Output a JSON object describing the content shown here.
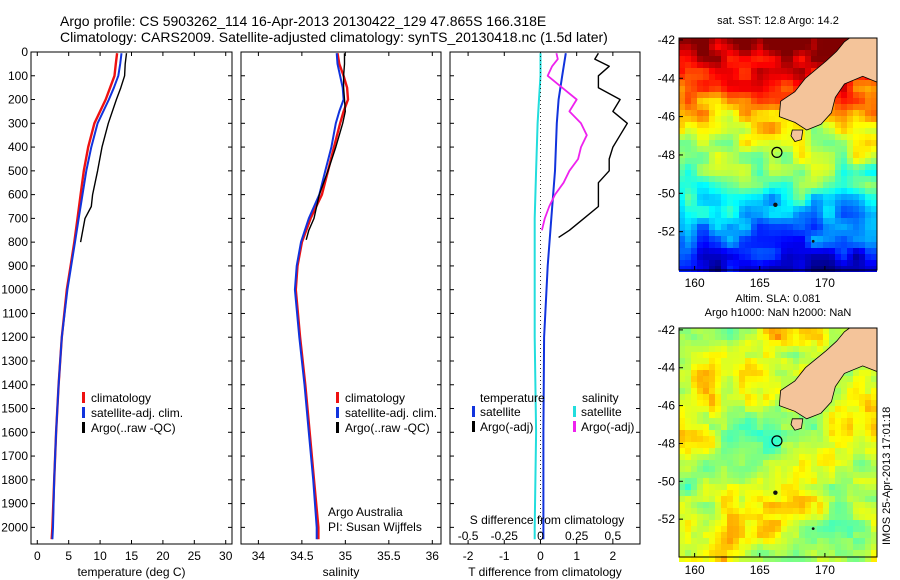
{
  "header": {
    "line1": "Argo profile: CS 5903262_114 16-Apr-2013 20130422_129 47.865S 166.318E",
    "line2": "Climatology: CARS2009. Satellite-adjusted climatology: synTS_20130418.nc (1.5d later)"
  },
  "colors": {
    "climatology": "#ee1111",
    "satellite": "#1133dd",
    "argo": "#000000",
    "sal_satellite": "#22dddd",
    "sal_argo": "#ee22ee",
    "land": "#f4c49a"
  },
  "chart_data": [
    {
      "type": "line",
      "xlabel": "temperature (deg C)",
      "ylabel": "",
      "xlim": [
        -1,
        31
      ],
      "ylim": [
        2070,
        0
      ],
      "xticks": [
        0,
        5,
        10,
        15,
        20,
        25,
        30
      ],
      "yticks": [
        0,
        100,
        200,
        300,
        400,
        500,
        600,
        700,
        800,
        900,
        1000,
        1100,
        1200,
        1300,
        1400,
        1500,
        1600,
        1700,
        1800,
        1900,
        2000
      ],
      "legend": [
        "climatology",
        "satellite-adj. clim.",
        "Argo(..raw -QC)"
      ],
      "series": [
        {
          "name": "climatology",
          "depth": [
            5,
            50,
            100,
            150,
            200,
            300,
            400,
            500,
            600,
            700,
            800,
            900,
            1000,
            1200,
            1400,
            1600,
            1800,
            2000,
            2050
          ],
          "values": [
            12.7,
            12.5,
            12.3,
            11.6,
            10.9,
            9.1,
            8.1,
            7.4,
            6.9,
            6.4,
            5.9,
            5.3,
            4.7,
            3.9,
            3.4,
            3.0,
            2.7,
            2.4,
            2.3
          ]
        },
        {
          "name": "satellite-adj. clim.",
          "depth": [
            5,
            50,
            100,
            150,
            200,
            300,
            400,
            500,
            600,
            700,
            800,
            900,
            1000,
            1200,
            1400,
            1600,
            1800,
            2000,
            2050
          ],
          "values": [
            13.4,
            13.2,
            12.9,
            12.2,
            11.4,
            9.6,
            8.6,
            7.8,
            7.2,
            6.6,
            6.0,
            5.4,
            4.8,
            3.9,
            3.4,
            3.0,
            2.7,
            2.5,
            2.4
          ]
        },
        {
          "name": "Argo(..raw -QC)",
          "depth": [
            5,
            50,
            100,
            150,
            200,
            300,
            400,
            500,
            600,
            650,
            700,
            800
          ],
          "values": [
            14.2,
            14.0,
            13.9,
            13.3,
            12.6,
            11.3,
            10.3,
            9.6,
            8.8,
            8.6,
            7.6,
            6.9
          ]
        }
      ]
    },
    {
      "type": "line",
      "xlabel": "salinity",
      "ylabel": "",
      "xlim": [
        33.8,
        36.1
      ],
      "ylim": [
        2070,
        0
      ],
      "xticks": [
        34,
        34.5,
        35,
        35.5,
        36
      ],
      "legend": [
        "climatology",
        "satellite-adj. clim.",
        "Argo(..raw -QC)"
      ],
      "annotation": [
        "Argo Australia",
        "PI: Susan Wijffels"
      ],
      "series": [
        {
          "name": "climatology",
          "depth": [
            5,
            50,
            100,
            150,
            200,
            250,
            300,
            400,
            500,
            600,
            700,
            800,
            900,
            1000,
            1200,
            1400,
            1600,
            1800,
            2000,
            2050
          ],
          "values": [
            34.91,
            34.93,
            34.98,
            35.02,
            35.03,
            34.98,
            34.94,
            34.87,
            34.8,
            34.73,
            34.6,
            34.5,
            34.45,
            34.43,
            34.48,
            34.54,
            34.59,
            34.64,
            34.69,
            34.69
          ]
        },
        {
          "name": "satellite-adj. clim.",
          "depth": [
            5,
            50,
            100,
            150,
            200,
            250,
            300,
            400,
            500,
            600,
            700,
            800,
            900,
            1000,
            1200,
            1400,
            1600,
            1800,
            2000,
            2050
          ],
          "values": [
            34.9,
            34.91,
            34.94,
            34.97,
            34.98,
            34.93,
            34.89,
            34.84,
            34.77,
            34.7,
            34.58,
            34.49,
            34.44,
            34.42,
            34.47,
            34.53,
            34.58,
            34.63,
            34.67,
            34.67
          ]
        },
        {
          "name": "Argo(..raw -QC)",
          "depth": [
            5,
            50,
            100,
            150,
            200,
            250,
            300,
            400,
            500,
            600,
            700,
            750,
            790
          ],
          "values": [
            34.99,
            34.99,
            34.98,
            34.98,
            34.99,
            35.0,
            34.97,
            34.89,
            34.8,
            34.7,
            34.64,
            34.58,
            34.55
          ]
        }
      ]
    },
    {
      "type": "line",
      "xlabel": "T difference from climatology",
      "ylabel": "",
      "title_top": "S difference from climatology",
      "xlim": [
        -2.5,
        2.75
      ],
      "ylim": [
        2070,
        0
      ],
      "xticks": [
        -2,
        -1,
        0,
        1,
        2
      ],
      "xticks_top": [
        -0.5,
        -0.25,
        0,
        0.25,
        0.5
      ],
      "legend_left": {
        "heading": "temperature",
        "entries": [
          "satellite",
          "Argo(-adj)"
        ]
      },
      "legend_right": {
        "heading": "salinity",
        "entries": [
          "satellite",
          "Argo(-adj)"
        ]
      },
      "series": [
        {
          "name": "temperature satellite",
          "depth": [
            5,
            100,
            200,
            300,
            500,
            700,
            900,
            1200,
            1600,
            2000,
            2050
          ],
          "values": [
            0.7,
            0.6,
            0.5,
            0.45,
            0.4,
            0.3,
            0.2,
            0.1,
            0.08,
            0.08,
            0.08
          ]
        },
        {
          "name": "temperature Argo(-adj)",
          "depth": [
            5,
            30,
            60,
            100,
            150,
            200,
            250,
            300,
            350,
            400,
            450,
            500,
            550,
            600,
            650,
            700,
            750,
            780
          ],
          "values": [
            1.6,
            1.5,
            1.9,
            1.6,
            1.6,
            2.2,
            2.0,
            2.4,
            2.2,
            2.0,
            1.9,
            1.9,
            1.6,
            1.6,
            1.6,
            1.2,
            0.8,
            0.5
          ]
        },
        {
          "name": "salinity satellite",
          "depth": [
            5,
            100,
            200,
            300,
            500,
            700,
            900,
            1200,
            1600,
            2000,
            2050
          ],
          "values": [
            0.0,
            0.0,
            -0.01,
            -0.02,
            -0.03,
            -0.04,
            -0.04,
            -0.04,
            -0.03,
            -0.04,
            -0.04
          ]
        },
        {
          "name": "salinity Argo(-adj)",
          "depth": [
            5,
            30,
            60,
            100,
            150,
            200,
            250,
            300,
            350,
            400,
            450,
            500,
            550,
            600,
            650,
            700,
            750
          ],
          "values": [
            0.11,
            0.12,
            0.08,
            0.05,
            0.15,
            0.25,
            0.2,
            0.28,
            0.32,
            0.28,
            0.26,
            0.2,
            0.16,
            0.1,
            0.06,
            0.03,
            0.01
          ]
        }
      ]
    },
    {
      "type": "heatmap",
      "title": "sat. SST: 12.8 Argo: 14.2",
      "xticks": [
        160,
        165,
        170
      ],
      "yticks": [
        -42,
        -44,
        -46,
        -48,
        -50,
        -52
      ],
      "xlim": [
        158.8,
        174
      ],
      "ylim": [
        -54,
        -41.9
      ]
    },
    {
      "type": "heatmap",
      "title": "Altim. SLA: 0.081",
      "subtitle": "Argo h1000: NaN h2000: NaN",
      "xticks": [
        160,
        165,
        170
      ],
      "yticks": [
        -42,
        -44,
        -46,
        -48,
        -50,
        -52
      ],
      "xlim": [
        158.8,
        174
      ],
      "ylim": [
        -54,
        -41.9
      ]
    }
  ],
  "credit": "IMOS 25-Apr-2013 17:01:18"
}
